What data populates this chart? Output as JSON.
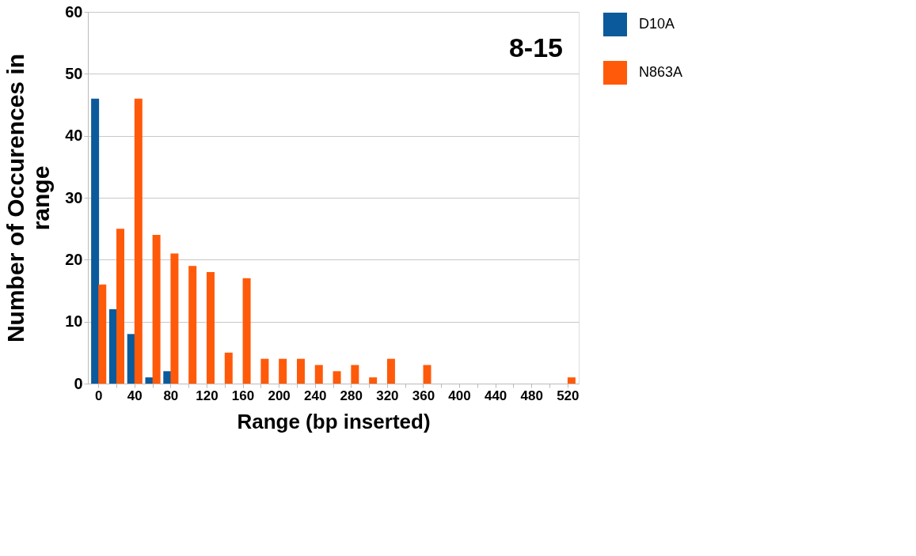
{
  "chart_data": {
    "type": "bar",
    "xlabel": "Range (bp inserted)",
    "ylabel": "Number of Occurences in range",
    "annotations": [
      "8-15"
    ],
    "categories": [
      "0",
      null,
      "40",
      null,
      "80",
      null,
      "120",
      null,
      "160",
      null,
      "200",
      null,
      "240",
      null,
      "280",
      null,
      "320",
      null,
      "360",
      null,
      "400",
      null,
      "440",
      null,
      "480",
      null,
      "520"
    ],
    "series": [
      {
        "name": "D10A",
        "color": "#0a5a9c",
        "values": [
          46,
          12,
          8,
          1,
          2,
          0,
          0,
          0,
          0,
          0,
          0,
          0,
          0,
          0,
          0,
          0,
          0,
          0,
          0,
          0,
          0,
          0,
          0,
          0,
          0,
          0,
          0
        ]
      },
      {
        "name": "N863A",
        "color": "#ff5a0a",
        "values": [
          16,
          25,
          46,
          24,
          21,
          19,
          18,
          5,
          17,
          4,
          4,
          4,
          3,
          2,
          3,
          1,
          4,
          0,
          3,
          0,
          0,
          0,
          0,
          0,
          0,
          0,
          1
        ]
      }
    ],
    "ylim": [
      0,
      60
    ],
    "yticks": [
      0,
      10,
      20,
      30,
      40,
      50,
      60
    ],
    "grid": "y",
    "legend": "right"
  }
}
